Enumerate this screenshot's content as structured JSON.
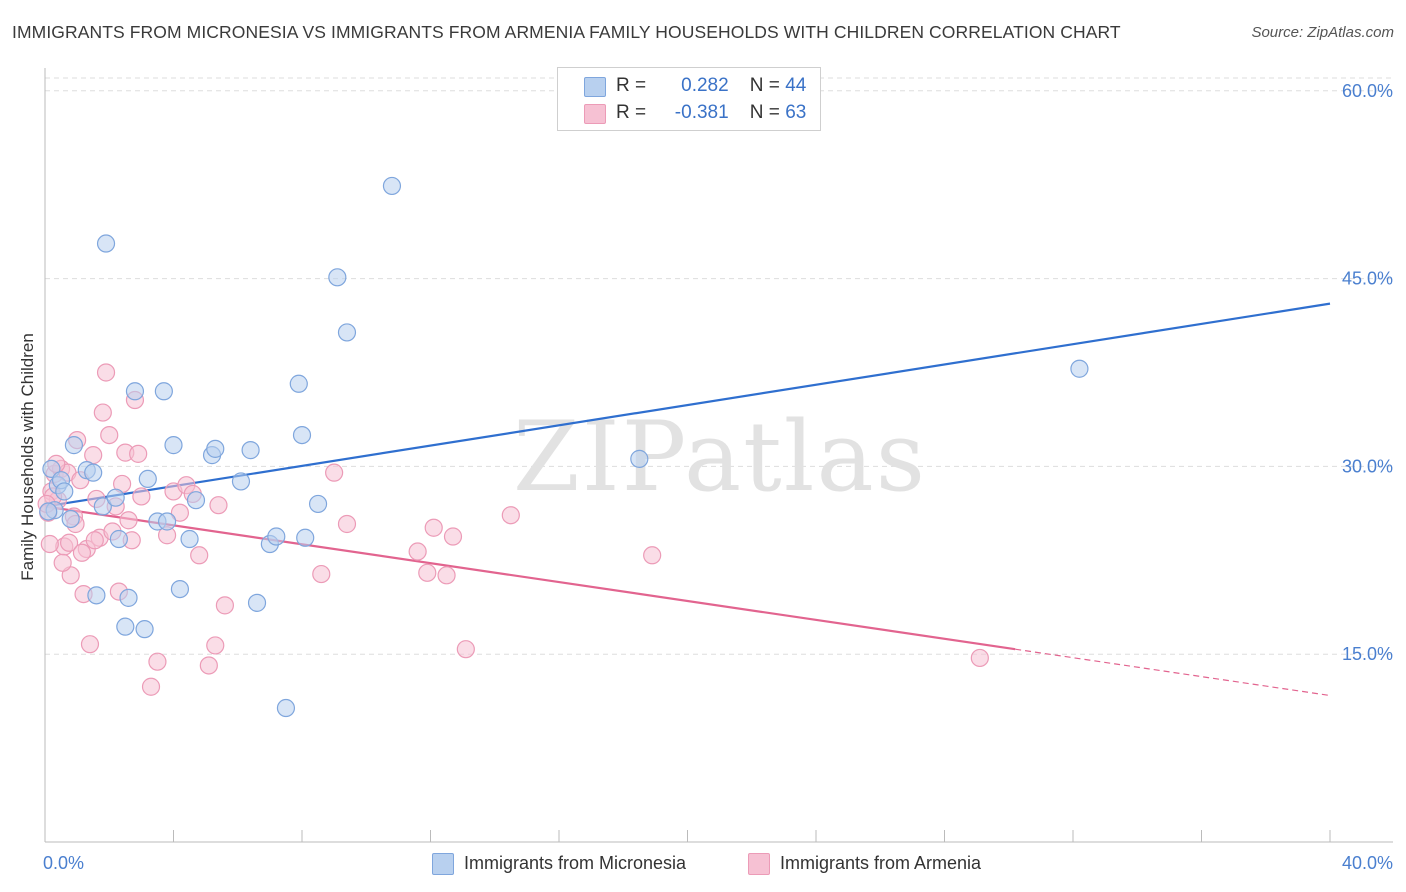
{
  "title": "IMMIGRANTS FROM MICRONESIA VS IMMIGRANTS FROM ARMENIA FAMILY HOUSEHOLDS WITH CHILDREN CORRELATION CHART",
  "source": "Source: ZipAtlas.com",
  "watermark": "ZIPatlas",
  "legend_top": [
    {
      "r_label": "R =",
      "r_value": "0.282",
      "n_label": "N =",
      "n_value": "44"
    },
    {
      "r_label": "R =",
      "r_value": "-0.381",
      "n_label": "N =",
      "n_value": "63"
    }
  ],
  "legend_bottom": [
    "Immigrants from Micronesia",
    "Immigrants from Armenia"
  ],
  "colors": {
    "series1_fill": "#b8d0ef",
    "series1_stroke": "#7fa6dd",
    "series1_line": "#2f6fcf",
    "series2_fill": "#f6c1d3",
    "series2_stroke": "#ec9bb7",
    "series2_line": "#e2648f",
    "tick_text": "#4a7fcf",
    "grid": "#dddddd"
  },
  "chart_data": {
    "type": "scatter",
    "title": "IMMIGRANTS FROM MICRONESIA VS IMMIGRANTS FROM ARMENIA FAMILY HOUSEHOLDS WITH CHILDREN CORRELATION CHART",
    "xlabel": "",
    "ylabel": "Family Households with Children",
    "xlim": [
      0,
      40
    ],
    "ylim": [
      0,
      61.5
    ],
    "x_tick_labels": [
      "0.0%",
      "40.0%"
    ],
    "y_ticks": [
      15,
      30,
      45,
      60
    ],
    "y_tick_labels": [
      "15.0%",
      "30.0%",
      "45.0%",
      "60.0%"
    ],
    "grid": "horizontal dashed",
    "legend_position": "top-center",
    "series": [
      {
        "name": "Immigrants from Micronesia",
        "r": 0.282,
        "n": 44,
        "trend": {
          "x": [
            0,
            40
          ],
          "y": [
            26.8,
            43.0
          ],
          "style": "solid"
        },
        "points": [
          [
            0.2,
            29.8
          ],
          [
            0.3,
            26.5
          ],
          [
            0.4,
            28.5
          ],
          [
            0.5,
            28.9
          ],
          [
            0.6,
            28.0
          ],
          [
            0.8,
            25.8
          ],
          [
            0.9,
            31.7
          ],
          [
            1.3,
            29.7
          ],
          [
            1.5,
            29.5
          ],
          [
            1.6,
            19.7
          ],
          [
            1.8,
            26.8
          ],
          [
            1.9,
            47.8
          ],
          [
            2.2,
            27.5
          ],
          [
            2.3,
            24.2
          ],
          [
            2.5,
            17.2
          ],
          [
            2.6,
            19.5
          ],
          [
            2.8,
            36.0
          ],
          [
            3.1,
            17.0
          ],
          [
            3.2,
            29.0
          ],
          [
            3.5,
            25.6
          ],
          [
            3.7,
            36.0
          ],
          [
            3.8,
            25.6
          ],
          [
            4.0,
            31.7
          ],
          [
            4.2,
            20.2
          ],
          [
            4.5,
            24.2
          ],
          [
            4.7,
            27.3
          ],
          [
            5.2,
            30.9
          ],
          [
            5.3,
            31.4
          ],
          [
            6.1,
            28.8
          ],
          [
            6.4,
            31.3
          ],
          [
            6.6,
            19.1
          ],
          [
            7.0,
            23.8
          ],
          [
            7.2,
            24.4
          ],
          [
            7.5,
            10.7
          ],
          [
            7.9,
            36.6
          ],
          [
            8.0,
            32.5
          ],
          [
            8.1,
            24.3
          ],
          [
            8.5,
            27.0
          ],
          [
            9.1,
            45.1
          ],
          [
            9.4,
            40.7
          ],
          [
            10.8,
            52.4
          ],
          [
            18.5,
            30.6
          ],
          [
            32.2,
            37.8
          ],
          [
            0.1,
            26.4
          ]
        ]
      },
      {
        "name": "Immigrants from Armenia",
        "r": -0.381,
        "n": 63,
        "trend": {
          "x": [
            0,
            30.2
          ],
          "y": [
            26.8,
            15.4
          ],
          "style": "solid",
          "extension": {
            "x": [
              30.2,
              40
            ],
            "y": [
              15.4,
              11.7
            ],
            "style": "dashed"
          }
        },
        "points": [
          [
            0.1,
            26.3
          ],
          [
            0.2,
            28.0
          ],
          [
            0.3,
            29.4
          ],
          [
            0.4,
            27.3
          ],
          [
            0.5,
            29.8
          ],
          [
            0.6,
            23.6
          ],
          [
            0.7,
            29.5
          ],
          [
            0.8,
            21.3
          ],
          [
            0.9,
            26.0
          ],
          [
            1.0,
            32.1
          ],
          [
            1.1,
            28.9
          ],
          [
            1.2,
            19.8
          ],
          [
            1.3,
            23.4
          ],
          [
            1.4,
            15.8
          ],
          [
            1.5,
            30.9
          ],
          [
            1.6,
            27.4
          ],
          [
            1.7,
            24.3
          ],
          [
            1.8,
            34.3
          ],
          [
            1.9,
            37.5
          ],
          [
            2.0,
            32.5
          ],
          [
            2.1,
            24.8
          ],
          [
            2.2,
            26.8
          ],
          [
            2.3,
            20.0
          ],
          [
            2.4,
            28.6
          ],
          [
            2.5,
            31.1
          ],
          [
            2.6,
            25.7
          ],
          [
            2.7,
            24.1
          ],
          [
            2.8,
            35.3
          ],
          [
            2.9,
            31.0
          ],
          [
            3.0,
            27.6
          ],
          [
            3.3,
            12.4
          ],
          [
            3.5,
            14.4
          ],
          [
            3.8,
            24.5
          ],
          [
            4.0,
            28.0
          ],
          [
            4.2,
            26.3
          ],
          [
            4.4,
            28.5
          ],
          [
            4.6,
            27.8
          ],
          [
            4.8,
            22.9
          ],
          [
            5.1,
            14.1
          ],
          [
            5.3,
            15.7
          ],
          [
            5.4,
            26.9
          ],
          [
            5.6,
            18.9
          ],
          [
            8.6,
            21.4
          ],
          [
            9.0,
            29.5
          ],
          [
            9.4,
            25.4
          ],
          [
            11.6,
            23.2
          ],
          [
            11.9,
            21.5
          ],
          [
            12.1,
            25.1
          ],
          [
            12.5,
            21.3
          ],
          [
            12.7,
            24.4
          ],
          [
            13.1,
            15.4
          ],
          [
            14.5,
            26.1
          ],
          [
            18.9,
            22.9
          ],
          [
            29.1,
            14.7
          ],
          [
            0.15,
            23.8
          ],
          [
            0.35,
            30.2
          ],
          [
            0.55,
            22.3
          ],
          [
            0.75,
            23.9
          ],
          [
            0.95,
            25.4
          ],
          [
            1.15,
            23.1
          ],
          [
            1.55,
            24.1
          ],
          [
            0.25,
            27.6
          ],
          [
            0.05,
            27.0
          ]
        ]
      }
    ]
  }
}
